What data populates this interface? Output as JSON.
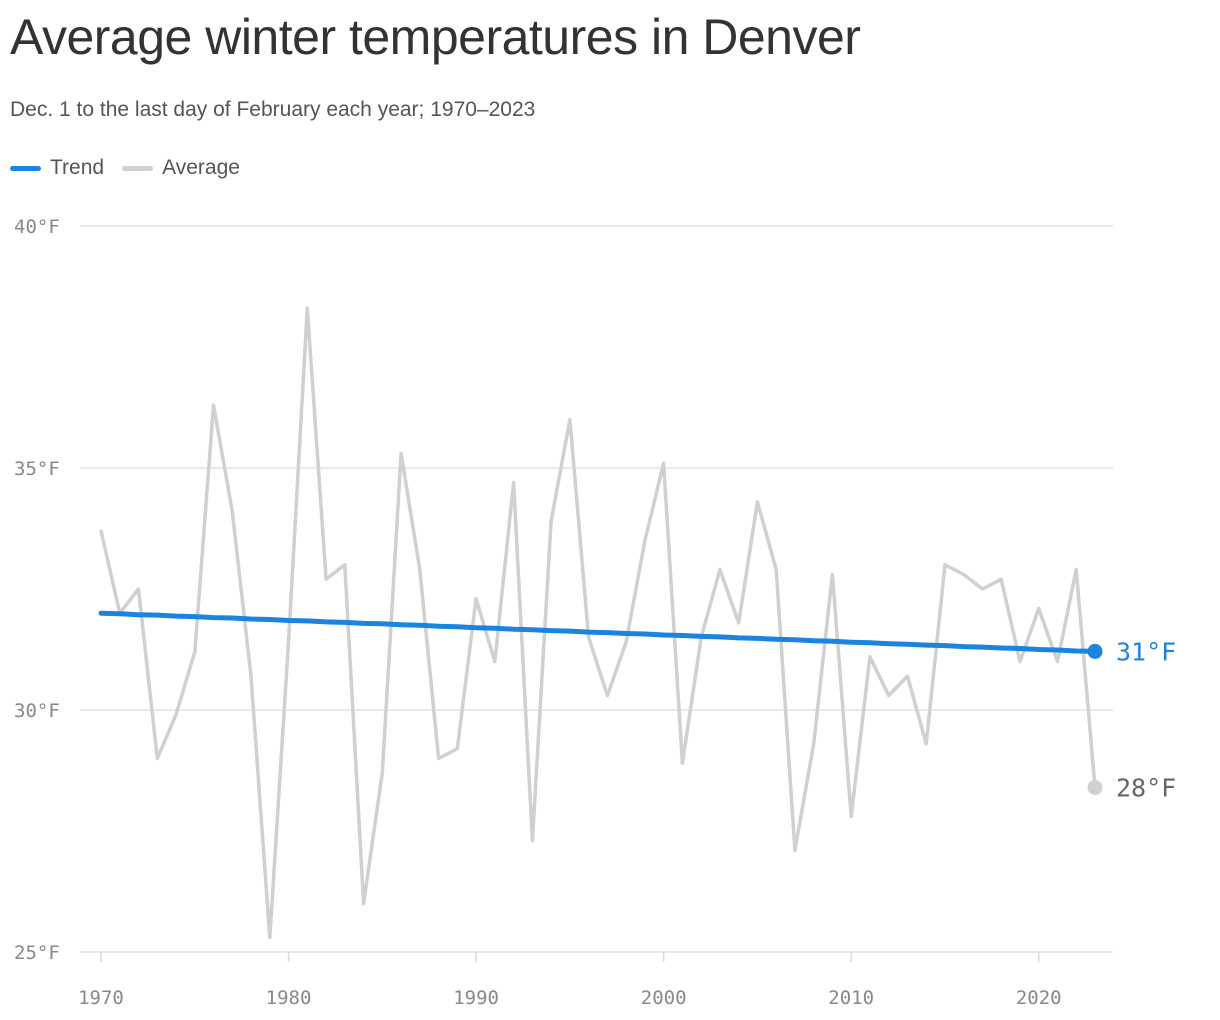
{
  "chart_data": {
    "type": "line",
    "title": "Average winter temperatures in Denver",
    "subtitle": "Dec. 1 to the last day of February each year; 1970–2023",
    "xlabel": "",
    "ylabel": "",
    "xlim": [
      1970,
      2023
    ],
    "ylim": [
      25,
      40
    ],
    "yticks": [
      {
        "value": 40,
        "label": "40°F"
      },
      {
        "value": 35,
        "label": "35°F"
      },
      {
        "value": 30,
        "label": "30°F"
      },
      {
        "value": 25,
        "label": "25°F"
      }
    ],
    "xticks": [
      {
        "value": 1970,
        "label": "1970"
      },
      {
        "value": 1980,
        "label": "1980"
      },
      {
        "value": 1990,
        "label": "1990"
      },
      {
        "value": 2000,
        "label": "2000"
      },
      {
        "value": 2010,
        "label": "2010"
      },
      {
        "value": 2020,
        "label": "2020"
      }
    ],
    "grid": true,
    "legend_position": "top-left",
    "x": [
      1970,
      1971,
      1972,
      1973,
      1974,
      1975,
      1976,
      1977,
      1978,
      1979,
      1980,
      1981,
      1982,
      1983,
      1984,
      1985,
      1986,
      1987,
      1988,
      1989,
      1990,
      1991,
      1992,
      1993,
      1994,
      1995,
      1996,
      1997,
      1998,
      1999,
      2000,
      2001,
      2002,
      2003,
      2004,
      2005,
      2006,
      2007,
      2008,
      2009,
      2010,
      2011,
      2012,
      2013,
      2014,
      2015,
      2016,
      2017,
      2018,
      2019,
      2020,
      2021,
      2022,
      2023
    ],
    "series": [
      {
        "name": "Trend",
        "color": "#1a84e0",
        "values": [
          32.0,
          31.99,
          31.97,
          31.96,
          31.94,
          31.93,
          31.91,
          31.9,
          31.88,
          31.87,
          31.85,
          31.84,
          31.82,
          31.81,
          31.79,
          31.78,
          31.76,
          31.75,
          31.73,
          31.72,
          31.7,
          31.69,
          31.67,
          31.66,
          31.64,
          31.63,
          31.61,
          31.6,
          31.58,
          31.57,
          31.55,
          31.54,
          31.52,
          31.51,
          31.49,
          31.48,
          31.46,
          31.45,
          31.43,
          31.42,
          31.4,
          31.39,
          31.37,
          31.36,
          31.34,
          31.33,
          31.31,
          31.3,
          31.28,
          31.27,
          31.25,
          31.24,
          31.22,
          31.21
        ],
        "end_label": "31°F"
      },
      {
        "name": "Average",
        "color": "#d0d0d0",
        "values": [
          33.7,
          32.0,
          32.5,
          29.0,
          29.9,
          31.2,
          36.3,
          34.1,
          30.7,
          25.3,
          31.4,
          38.3,
          32.7,
          33.0,
          26.0,
          28.7,
          35.3,
          32.9,
          29.0,
          29.2,
          32.3,
          31.0,
          34.7,
          27.3,
          33.9,
          36.0,
          31.5,
          30.3,
          31.4,
          33.5,
          35.1,
          28.9,
          31.5,
          32.9,
          31.8,
          34.3,
          32.9,
          27.1,
          29.3,
          32.8,
          27.8,
          31.1,
          30.3,
          30.7,
          29.3,
          33.0,
          32.8,
          32.5,
          32.7,
          31.0,
          32.1,
          31.0,
          32.9,
          28.4
        ],
        "end_label": "28°F"
      }
    ]
  },
  "legend": {
    "items": [
      "Trend",
      "Average"
    ]
  }
}
